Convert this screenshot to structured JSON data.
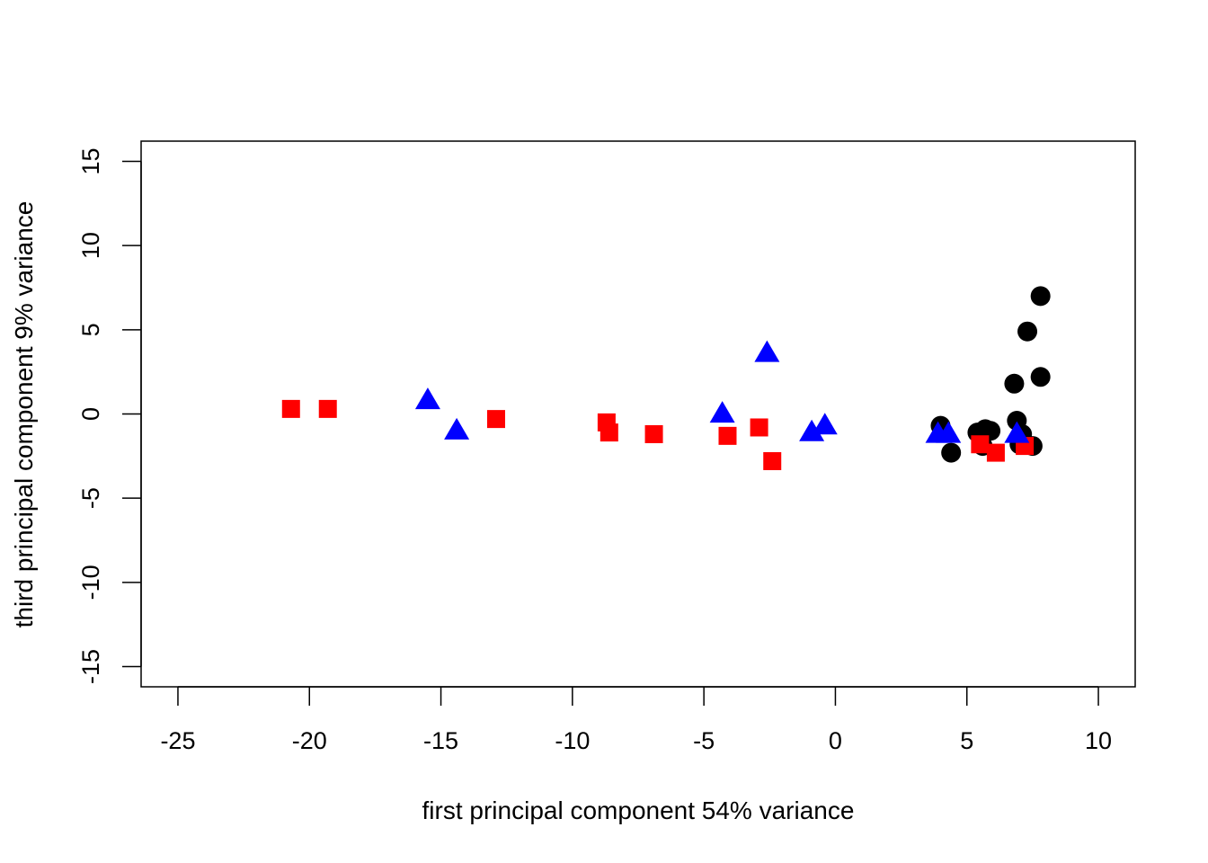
{
  "chart_data": {
    "type": "scatter",
    "title": "",
    "xlabel": "first principal component 54% variance",
    "ylabel": "third principal component 9% variance",
    "xlim": [
      -26.4,
      11.4
    ],
    "ylim": [
      -16.2,
      16.2
    ],
    "xticks": [
      -25,
      -20,
      -15,
      -10,
      -5,
      0,
      5,
      10
    ],
    "yticks": [
      -15,
      -10,
      -5,
      0,
      5,
      10,
      15
    ],
    "xtick_labels": [
      "-25",
      "-20",
      "-15",
      "-10",
      "-5",
      "0",
      "5",
      "10"
    ],
    "ytick_labels": [
      "-15",
      "-10",
      "-5",
      "0",
      "5",
      "10",
      "15"
    ],
    "grid": false,
    "legend": null,
    "series": [
      {
        "marker": "circle",
        "color": "#000000",
        "points": [
          [
            7.8,
            7.0
          ],
          [
            7.3,
            4.9
          ],
          [
            7.8,
            2.2
          ],
          [
            6.8,
            1.8
          ],
          [
            6.9,
            -0.4
          ],
          [
            4.0,
            -0.7
          ],
          [
            4.4,
            -2.3
          ],
          [
            5.4,
            -1.1
          ],
          [
            5.7,
            -0.9
          ],
          [
            5.9,
            -1.0
          ],
          [
            5.6,
            -1.9
          ],
          [
            7.1,
            -1.2
          ],
          [
            7.0,
            -1.8
          ],
          [
            7.5,
            -1.9
          ]
        ]
      },
      {
        "marker": "square",
        "color": "#ff0000",
        "points": [
          [
            -20.7,
            0.3
          ],
          [
            -19.3,
            0.3
          ],
          [
            -12.9,
            -0.3
          ],
          [
            -8.7,
            -0.5
          ],
          [
            -8.6,
            -1.1
          ],
          [
            -6.9,
            -1.2
          ],
          [
            -4.1,
            -1.3
          ],
          [
            -2.9,
            -0.8
          ],
          [
            -2.4,
            -2.8
          ],
          [
            5.5,
            -1.8
          ],
          [
            6.1,
            -2.3
          ],
          [
            7.2,
            -1.9
          ]
        ]
      },
      {
        "marker": "triangle",
        "color": "#0000ff",
        "points": [
          [
            -15.5,
            0.8
          ],
          [
            -14.4,
            -1.0
          ],
          [
            -4.3,
            0.0
          ],
          [
            -2.6,
            3.6
          ],
          [
            -0.9,
            -1.1
          ],
          [
            -0.4,
            -0.7
          ],
          [
            3.9,
            -1.2
          ],
          [
            4.3,
            -1.2
          ],
          [
            6.9,
            -1.2
          ]
        ]
      }
    ]
  }
}
